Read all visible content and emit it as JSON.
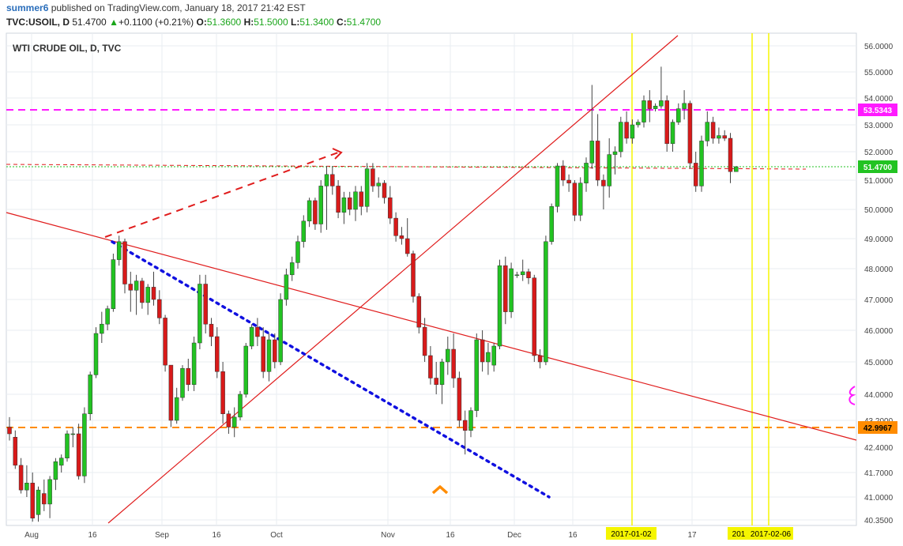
{
  "header": {
    "author": "summer6",
    "published_text": " published on TradingView.com, January 18, 2017 21:42 EST",
    "symbol_line": "TVC:USOIL, D",
    "last": "51.4700",
    "change_icon": "triangle-up-icon",
    "change_arrow": "▲",
    "change": "+0.1100 (+0.21%)",
    "o_label": "O:",
    "o": "51.3600",
    "h_label": "H:",
    "h": "51.5000",
    "l_label": "L:",
    "l": "51.3400",
    "c_label": "C:",
    "c": "51.4700"
  },
  "colors": {
    "up": "#22c322",
    "down": "#d81a1a",
    "grid": "#e8edf2",
    "trend": "#e01c1c",
    "magenta": "#ff1aff",
    "orange": "#ff8c00",
    "yellow": "#f5f500",
    "blue": "#1010e0",
    "last_price_line": "#22c322"
  },
  "chart_data": {
    "type": "candlestick",
    "title": "WTI CRUDE OIL, D, TVC",
    "y_ticks": [
      "56.0000",
      "55.0000",
      "54.0000",
      "53.0000",
      "52.0000",
      "51.0000",
      "50.0000",
      "49.0000",
      "48.0000",
      "47.0000",
      "46.0000",
      "45.0000",
      "44.0000",
      "43.2000",
      "42.4000",
      "41.7000",
      "41.0000",
      "40.3500"
    ],
    "x_ticks": [
      "Aug",
      "16",
      "Sep",
      "16",
      "Oct",
      "Nov",
      "16",
      "Dec",
      "16",
      "17"
    ],
    "price_labels": {
      "magenta": "53.5343",
      "last": "51.4700",
      "orange": "42.9967"
    },
    "date_labels": [
      "2017-01-02",
      "201",
      "2017-02-06"
    ],
    "candles": [
      {
        "o": 43.0,
        "h": 43.3,
        "l": 42.6,
        "c": 42.8
      },
      {
        "o": 42.7,
        "h": 42.9,
        "l": 41.8,
        "c": 41.9
      },
      {
        "o": 41.9,
        "h": 42.1,
        "l": 41.1,
        "c": 41.2
      },
      {
        "o": 41.2,
        "h": 41.9,
        "l": 41.0,
        "c": 41.4
      },
      {
        "o": 41.4,
        "h": 41.7,
        "l": 40.3,
        "c": 40.4
      },
      {
        "o": 40.5,
        "h": 41.3,
        "l": 40.3,
        "c": 41.2
      },
      {
        "o": 41.1,
        "h": 41.5,
        "l": 40.6,
        "c": 40.8
      },
      {
        "o": 40.8,
        "h": 41.6,
        "l": 40.4,
        "c": 41.5
      },
      {
        "o": 41.5,
        "h": 42.1,
        "l": 41.2,
        "c": 42.0
      },
      {
        "o": 41.9,
        "h": 42.2,
        "l": 41.7,
        "c": 42.1
      },
      {
        "o": 42.1,
        "h": 42.9,
        "l": 42.0,
        "c": 42.8
      },
      {
        "o": 42.8,
        "h": 43.0,
        "l": 42.4,
        "c": 42.8
      },
      {
        "o": 42.8,
        "h": 43.1,
        "l": 41.5,
        "c": 41.6
      },
      {
        "o": 41.6,
        "h": 43.6,
        "l": 41.4,
        "c": 43.4
      },
      {
        "o": 43.4,
        "h": 44.7,
        "l": 43.2,
        "c": 44.6
      },
      {
        "o": 44.6,
        "h": 46.1,
        "l": 44.5,
        "c": 45.9
      },
      {
        "o": 45.9,
        "h": 46.6,
        "l": 45.6,
        "c": 46.2
      },
      {
        "o": 46.2,
        "h": 46.8,
        "l": 46.0,
        "c": 46.7
      },
      {
        "o": 46.7,
        "h": 48.5,
        "l": 46.6,
        "c": 48.3
      },
      {
        "o": 48.3,
        "h": 49.1,
        "l": 48.1,
        "c": 48.9
      },
      {
        "o": 48.9,
        "h": 49.0,
        "l": 47.2,
        "c": 47.5
      },
      {
        "o": 47.5,
        "h": 47.9,
        "l": 46.6,
        "c": 47.3
      },
      {
        "o": 47.3,
        "h": 47.8,
        "l": 46.5,
        "c": 47.6
      },
      {
        "o": 47.6,
        "h": 47.7,
        "l": 46.7,
        "c": 46.9
      },
      {
        "o": 46.9,
        "h": 47.5,
        "l": 46.5,
        "c": 47.4
      },
      {
        "o": 47.4,
        "h": 47.9,
        "l": 46.8,
        "c": 47.0
      },
      {
        "o": 47.0,
        "h": 47.3,
        "l": 46.2,
        "c": 46.4
      },
      {
        "o": 46.4,
        "h": 46.5,
        "l": 44.7,
        "c": 44.9
      },
      {
        "o": 44.9,
        "h": 44.9,
        "l": 43.0,
        "c": 43.2
      },
      {
        "o": 43.2,
        "h": 44.2,
        "l": 43.1,
        "c": 43.9
      },
      {
        "o": 43.9,
        "h": 44.9,
        "l": 43.8,
        "c": 44.8
      },
      {
        "o": 44.8,
        "h": 45.1,
        "l": 44.1,
        "c": 44.3
      },
      {
        "o": 44.3,
        "h": 45.8,
        "l": 44.1,
        "c": 45.6
      },
      {
        "o": 45.6,
        "h": 47.8,
        "l": 45.4,
        "c": 47.5
      },
      {
        "o": 47.5,
        "h": 47.8,
        "l": 45.9,
        "c": 46.2
      },
      {
        "o": 46.2,
        "h": 46.4,
        "l": 45.5,
        "c": 45.8
      },
      {
        "o": 45.8,
        "h": 46.1,
        "l": 44.5,
        "c": 44.7
      },
      {
        "o": 44.7,
        "h": 45.0,
        "l": 43.1,
        "c": 43.4
      },
      {
        "o": 43.4,
        "h": 43.5,
        "l": 42.8,
        "c": 43.0
      },
      {
        "o": 43.0,
        "h": 43.6,
        "l": 42.7,
        "c": 43.3
      },
      {
        "o": 43.3,
        "h": 44.1,
        "l": 43.2,
        "c": 44.0
      },
      {
        "o": 44.0,
        "h": 45.6,
        "l": 43.9,
        "c": 45.5
      },
      {
        "o": 45.5,
        "h": 46.2,
        "l": 45.4,
        "c": 46.1
      },
      {
        "o": 46.1,
        "h": 46.4,
        "l": 45.5,
        "c": 45.8
      },
      {
        "o": 45.8,
        "h": 46.1,
        "l": 44.5,
        "c": 44.7
      },
      {
        "o": 44.7,
        "h": 45.9,
        "l": 44.4,
        "c": 45.7
      },
      {
        "o": 45.7,
        "h": 45.9,
        "l": 44.8,
        "c": 45.0
      },
      {
        "o": 45.0,
        "h": 47.2,
        "l": 44.9,
        "c": 47.0
      },
      {
        "o": 47.0,
        "h": 48.0,
        "l": 46.8,
        "c": 47.8
      },
      {
        "o": 47.8,
        "h": 48.4,
        "l": 47.6,
        "c": 48.2
      },
      {
        "o": 48.2,
        "h": 49.1,
        "l": 48.0,
        "c": 48.9
      },
      {
        "o": 48.9,
        "h": 49.8,
        "l": 48.7,
        "c": 49.6
      },
      {
        "o": 49.6,
        "h": 50.4,
        "l": 49.4,
        "c": 50.3
      },
      {
        "o": 50.3,
        "h": 50.4,
        "l": 49.3,
        "c": 49.5
      },
      {
        "o": 49.5,
        "h": 51.0,
        "l": 49.2,
        "c": 50.8
      },
      {
        "o": 50.8,
        "h": 51.5,
        "l": 49.3,
        "c": 51.2
      },
      {
        "o": 51.2,
        "h": 51.5,
        "l": 50.5,
        "c": 50.8
      },
      {
        "o": 50.8,
        "h": 51.0,
        "l": 49.7,
        "c": 49.9
      },
      {
        "o": 49.9,
        "h": 50.6,
        "l": 49.5,
        "c": 50.4
      },
      {
        "o": 50.4,
        "h": 50.6,
        "l": 49.8,
        "c": 50.0
      },
      {
        "o": 50.0,
        "h": 50.8,
        "l": 49.6,
        "c": 50.6
      },
      {
        "o": 50.6,
        "h": 50.8,
        "l": 49.8,
        "c": 50.1
      },
      {
        "o": 50.1,
        "h": 51.6,
        "l": 49.9,
        "c": 51.4
      },
      {
        "o": 51.4,
        "h": 51.6,
        "l": 50.6,
        "c": 50.8
      },
      {
        "o": 50.8,
        "h": 51.1,
        "l": 50.4,
        "c": 50.9
      },
      {
        "o": 50.9,
        "h": 51.0,
        "l": 50.2,
        "c": 50.4
      },
      {
        "o": 50.4,
        "h": 50.8,
        "l": 49.5,
        "c": 49.7
      },
      {
        "o": 49.7,
        "h": 49.9,
        "l": 48.9,
        "c": 49.1
      },
      {
        "o": 49.1,
        "h": 49.4,
        "l": 48.8,
        "c": 49.0
      },
      {
        "o": 49.0,
        "h": 49.7,
        "l": 48.4,
        "c": 48.5
      },
      {
        "o": 48.5,
        "h": 48.6,
        "l": 46.9,
        "c": 47.1
      },
      {
        "o": 47.1,
        "h": 47.2,
        "l": 45.9,
        "c": 46.1
      },
      {
        "o": 46.1,
        "h": 46.4,
        "l": 45.0,
        "c": 45.2
      },
      {
        "o": 45.2,
        "h": 45.5,
        "l": 44.3,
        "c": 44.5
      },
      {
        "o": 44.5,
        "h": 45.0,
        "l": 44.0,
        "c": 44.3
      },
      {
        "o": 44.3,
        "h": 45.1,
        "l": 43.7,
        "c": 45.0
      },
      {
        "o": 45.0,
        "h": 45.8,
        "l": 44.6,
        "c": 45.4
      },
      {
        "o": 45.4,
        "h": 45.9,
        "l": 44.2,
        "c": 44.5
      },
      {
        "o": 44.5,
        "h": 44.7,
        "l": 43.0,
        "c": 43.2
      },
      {
        "o": 43.2,
        "h": 43.5,
        "l": 42.2,
        "c": 42.9
      },
      {
        "o": 42.9,
        "h": 43.6,
        "l": 42.7,
        "c": 43.5
      },
      {
        "o": 43.5,
        "h": 45.9,
        "l": 43.3,
        "c": 45.7
      },
      {
        "o": 45.7,
        "h": 46.0,
        "l": 44.7,
        "c": 45.0
      },
      {
        "o": 45.0,
        "h": 45.6,
        "l": 44.6,
        "c": 45.3
      },
      {
        "o": 44.9,
        "h": 45.6,
        "l": 44.7,
        "c": 45.5
      },
      {
        "o": 45.5,
        "h": 48.3,
        "l": 45.4,
        "c": 48.1
      },
      {
        "o": 48.1,
        "h": 48.4,
        "l": 46.2,
        "c": 46.6
      },
      {
        "o": 46.6,
        "h": 48.2,
        "l": 46.4,
        "c": 48.0
      },
      {
        "o": 47.8,
        "h": 47.9,
        "l": 47.7,
        "c": 47.8
      },
      {
        "o": 47.8,
        "h": 48.3,
        "l": 47.6,
        "c": 47.9
      },
      {
        "o": 47.9,
        "h": 48.0,
        "l": 47.5,
        "c": 47.7
      },
      {
        "o": 47.7,
        "h": 47.8,
        "l": 45.0,
        "c": 45.2
      },
      {
        "o": 45.2,
        "h": 45.4,
        "l": 44.8,
        "c": 45.0
      },
      {
        "o": 45.0,
        "h": 49.1,
        "l": 44.9,
        "c": 48.9
      },
      {
        "o": 48.9,
        "h": 50.2,
        "l": 48.8,
        "c": 50.1
      },
      {
        "o": 50.1,
        "h": 51.6,
        "l": 49.9,
        "c": 51.5
      },
      {
        "o": 51.5,
        "h": 51.7,
        "l": 50.8,
        "c": 51.0
      },
      {
        "o": 51.0,
        "h": 51.2,
        "l": 50.6,
        "c": 50.9
      },
      {
        "o": 50.9,
        "h": 51.0,
        "l": 49.6,
        "c": 49.8
      },
      {
        "o": 49.8,
        "h": 51.1,
        "l": 49.6,
        "c": 50.9
      },
      {
        "o": 50.9,
        "h": 51.8,
        "l": 50.6,
        "c": 51.6
      },
      {
        "o": 51.6,
        "h": 54.5,
        "l": 51.4,
        "c": 52.4
      },
      {
        "o": 52.4,
        "h": 53.4,
        "l": 50.8,
        "c": 51.0
      },
      {
        "o": 51.0,
        "h": 51.2,
        "l": 50.0,
        "c": 50.8
      },
      {
        "o": 50.8,
        "h": 52.5,
        "l": 50.4,
        "c": 51.9
      },
      {
        "o": 51.9,
        "h": 52.2,
        "l": 51.2,
        "c": 52.0
      },
      {
        "o": 52.0,
        "h": 53.3,
        "l": 51.8,
        "c": 53.1
      },
      {
        "o": 53.1,
        "h": 53.5,
        "l": 52.3,
        "c": 52.5
      },
      {
        "o": 52.5,
        "h": 53.2,
        "l": 52.3,
        "c": 53.0
      },
      {
        "o": 53.0,
        "h": 53.2,
        "l": 52.9,
        "c": 53.1
      },
      {
        "o": 53.1,
        "h": 54.1,
        "l": 52.9,
        "c": 53.9
      },
      {
        "o": 53.9,
        "h": 54.3,
        "l": 53.1,
        "c": 53.6
      },
      {
        "o": 53.6,
        "h": 53.8,
        "l": 53.5,
        "c": 53.7
      },
      {
        "o": 53.7,
        "h": 55.2,
        "l": 53.6,
        "c": 53.9
      },
      {
        "o": 53.9,
        "h": 54.1,
        "l": 52.0,
        "c": 52.3
      },
      {
        "o": 52.3,
        "h": 53.2,
        "l": 52.0,
        "c": 53.1
      },
      {
        "o": 53.1,
        "h": 53.8,
        "l": 53.0,
        "c": 53.6
      },
      {
        "o": 53.6,
        "h": 54.3,
        "l": 53.2,
        "c": 53.8
      },
      {
        "o": 53.8,
        "h": 53.9,
        "l": 51.4,
        "c": 51.6
      },
      {
        "o": 51.6,
        "h": 52.0,
        "l": 50.6,
        "c": 50.8
      },
      {
        "o": 50.8,
        "h": 52.6,
        "l": 50.6,
        "c": 52.4
      },
      {
        "o": 52.4,
        "h": 53.5,
        "l": 52.2,
        "c": 53.1
      },
      {
        "o": 53.1,
        "h": 53.3,
        "l": 52.3,
        "c": 52.5
      },
      {
        "o": 52.5,
        "h": 52.9,
        "l": 52.3,
        "c": 52.6
      },
      {
        "o": 52.6,
        "h": 52.8,
        "l": 52.4,
        "c": 52.5
      },
      {
        "o": 52.5,
        "h": 52.7,
        "l": 50.9,
        "c": 51.3
      },
      {
        "o": 51.3,
        "h": 51.5,
        "l": 51.3,
        "c": 51.47
      }
    ]
  }
}
